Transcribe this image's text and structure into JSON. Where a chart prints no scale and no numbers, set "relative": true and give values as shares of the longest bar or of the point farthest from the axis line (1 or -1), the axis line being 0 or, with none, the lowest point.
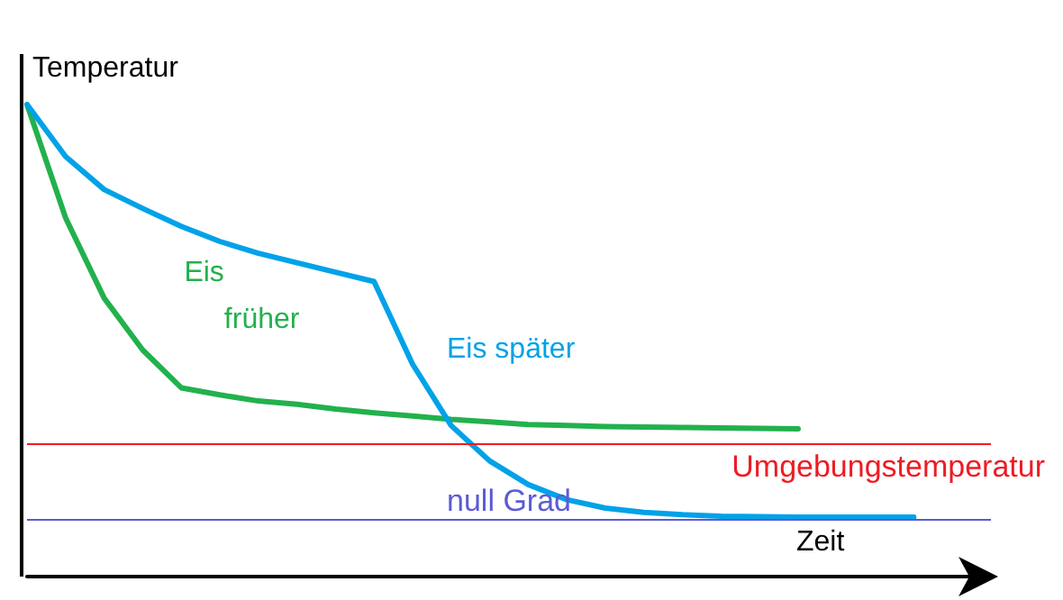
{
  "chart_data": {
    "type": "line",
    "relative": true,
    "xlabel": "Zeit",
    "ylabel": "Temperatur",
    "grid": false,
    "legend": false,
    "marker": "none",
    "categories": [
      null,
      null,
      null,
      null,
      null,
      null,
      null,
      null,
      null,
      null,
      null,
      null,
      null,
      null,
      null,
      null,
      null,
      null,
      null,
      null,
      null,
      null,
      null,
      null,
      null,
      null
    ],
    "series": [
      {
        "name": "Eis früher",
        "color": "#22b14c",
        "values": [
          1.0,
          0.76,
          0.59,
          0.48,
          0.4,
          0.385,
          0.372,
          0.365,
          0.355,
          0.347,
          0.34,
          0.333,
          0.328,
          0.322,
          0.32,
          0.318,
          0.317,
          0.316,
          0.315,
          0.314,
          0.313,
          null,
          null,
          null,
          null,
          null
        ]
      },
      {
        "name": "Eis später",
        "color": "#00a2e8",
        "values": [
          1.0,
          0.89,
          0.82,
          0.78,
          0.742,
          0.71,
          0.685,
          0.665,
          0.645,
          0.625,
          0.45,
          0.32,
          0.245,
          0.195,
          0.163,
          0.145,
          0.136,
          0.131,
          0.128,
          0.127,
          0.126,
          0.126,
          0.126,
          0.126,
          null,
          null
        ]
      }
    ],
    "ref_lines": [
      {
        "axis": "y",
        "value": 0.279,
        "label": "Umgebungstemperatur",
        "color": "#ed1c24"
      },
      {
        "axis": "y",
        "value": 0.122,
        "label": "null Grad",
        "color": "#5b5bd6"
      }
    ]
  }
}
